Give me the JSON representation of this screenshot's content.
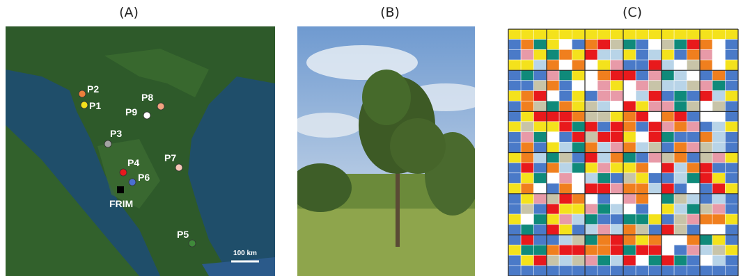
{
  "panels": [
    {
      "label": "(A)"
    },
    {
      "label": "(B)"
    },
    {
      "label": "(C)"
    }
  ],
  "map": {
    "sites": [
      {
        "label": "P1",
        "color": "#f4e21c"
      },
      {
        "label": "P2",
        "color": "#ec7f3c"
      },
      {
        "label": "P3",
        "color": "#a3a3a3"
      },
      {
        "label": "P4",
        "color": "#e8191c"
      },
      {
        "label": "P5",
        "color": "#3f8a3a"
      },
      {
        "label": "P6",
        "color": "#4a6fd0"
      },
      {
        "label": "P7",
        "color": "#f6c7b7"
      },
      {
        "label": "P8",
        "color": "#f2a37f"
      },
      {
        "label": "P9",
        "color": "#ffffff"
      }
    ],
    "station": "FRIM",
    "scale": "100 km"
  }
}
